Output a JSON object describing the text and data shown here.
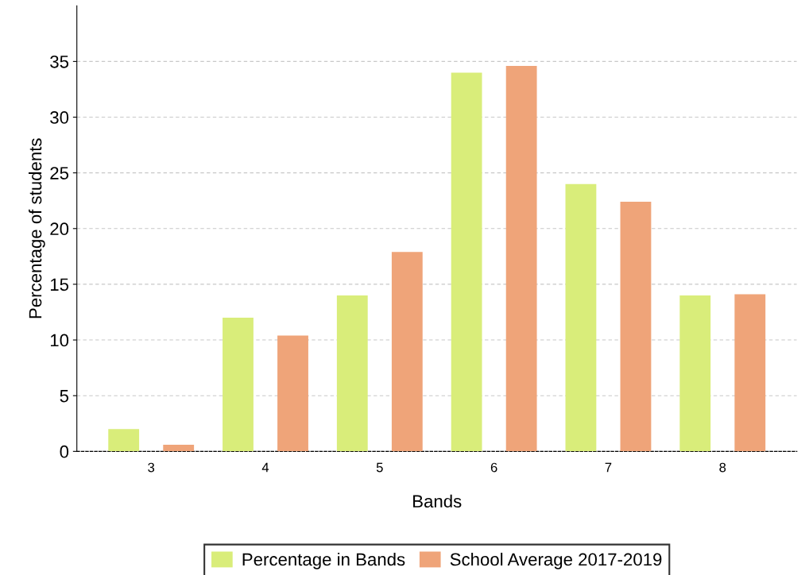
{
  "chart_data": {
    "type": "bar",
    "xlabel": "Bands",
    "ylabel": "Percentage of students",
    "categories": [
      "3",
      "4",
      "5",
      "6",
      "7",
      "8"
    ],
    "series": [
      {
        "name": "Percentage in Bands",
        "color": "#d9ed7a",
        "values": [
          2,
          12,
          14,
          34,
          24,
          14
        ]
      },
      {
        "name": "School Average 2017-2019",
        "color": "#efa479",
        "values": [
          0.6,
          10.4,
          17.9,
          34.6,
          22.4,
          14.1
        ]
      }
    ],
    "ylim": [
      0,
      40
    ],
    "yticks": [
      0,
      5,
      10,
      15,
      20,
      25,
      30,
      35
    ],
    "grid": "y",
    "legend": "bottom"
  }
}
